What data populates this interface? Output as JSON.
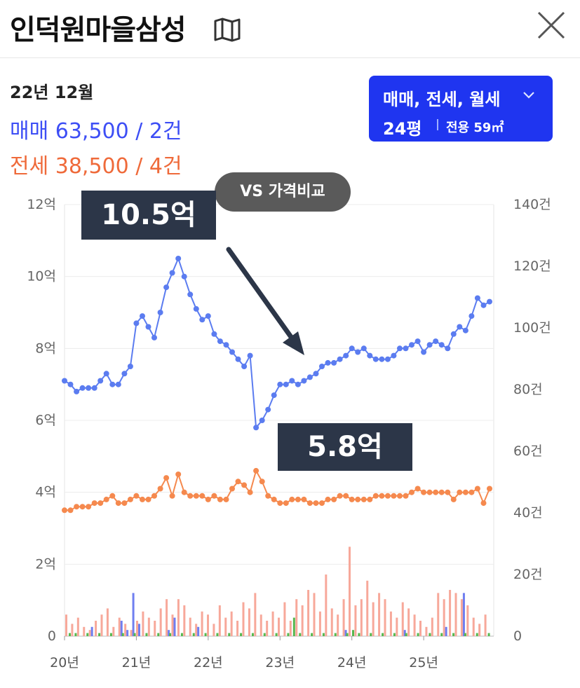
{
  "header": {
    "title": "인덕원마을삼성",
    "map_icon": "map-icon",
    "close_icon": "close-icon"
  },
  "info": {
    "date": "22년 12월",
    "sale": "매매 63,500 / 2건",
    "jeonse": "전세 38,500 / 4건"
  },
  "filter": {
    "types": "매매, 전세, 월세",
    "pyeong": "24평",
    "area": "전용 59㎡"
  },
  "vs_button": "VS 가격비교",
  "callouts": {
    "high": "10.5억",
    "low": "5.8억"
  },
  "colors": {
    "sale": "#5b7cf0",
    "jeonse": "#f5894e",
    "vol_sale": "#6f7ef0",
    "vol_jeonse": "#f7a89a",
    "vol_monthly": "#56b84f",
    "filter_bg": "#1f35f0",
    "callout_bg": "#2c3648"
  },
  "chart_data": {
    "type": "line",
    "x_labels": [
      "20년",
      "21년",
      "22년",
      "23년",
      "24년",
      "25년"
    ],
    "y_left": {
      "ticks": [
        "0",
        "2억",
        "4억",
        "6억",
        "8억",
        "10억",
        "12억"
      ],
      "range": [
        0,
        12
      ]
    },
    "y_right": {
      "ticks": [
        "0",
        "20건",
        "40건",
        "60건",
        "80건",
        "100건",
        "120건",
        "140건"
      ],
      "range": [
        0,
        140
      ]
    },
    "series": [
      {
        "key": "sale",
        "unit": "억",
        "values": [
          7.1,
          7.0,
          6.8,
          6.9,
          6.9,
          6.9,
          7.1,
          7.3,
          7.0,
          7.0,
          7.3,
          7.5,
          8.7,
          8.9,
          8.6,
          8.3,
          9.0,
          9.7,
          10.1,
          10.5,
          10.0,
          9.5,
          9.1,
          8.8,
          8.9,
          8.4,
          8.2,
          8.1,
          7.9,
          7.7,
          7.5,
          7.8,
          5.8,
          6.0,
          6.3,
          6.7,
          7.0,
          7.0,
          7.1,
          7.0,
          7.1,
          7.2,
          7.3,
          7.5,
          7.6,
          7.6,
          7.7,
          7.8,
          8.0,
          7.9,
          8.0,
          7.8,
          7.7,
          7.7,
          7.7,
          7.8,
          8.0,
          8.0,
          8.1,
          8.2,
          7.9,
          8.1,
          8.2,
          8.1,
          8.0,
          8.4,
          8.6,
          8.5,
          8.9,
          9.4,
          9.2,
          9.3
        ]
      },
      {
        "key": "jeonse",
        "unit": "억",
        "values": [
          3.5,
          3.5,
          3.6,
          3.6,
          3.6,
          3.7,
          3.7,
          3.8,
          3.9,
          3.7,
          3.7,
          3.8,
          3.9,
          3.8,
          3.8,
          3.9,
          4.1,
          4.4,
          3.9,
          4.5,
          4.0,
          3.9,
          3.9,
          3.9,
          3.8,
          3.9,
          3.8,
          3.8,
          4.1,
          4.3,
          4.2,
          4.0,
          4.6,
          4.3,
          3.9,
          3.8,
          3.7,
          3.7,
          3.8,
          3.8,
          3.8,
          3.7,
          3.7,
          3.7,
          3.8,
          3.8,
          3.9,
          3.9,
          3.8,
          3.8,
          3.8,
          3.8,
          3.9,
          3.9,
          3.9,
          3.9,
          3.9,
          3.9,
          4.0,
          4.1,
          4.0,
          4.0,
          4.0,
          4.0,
          4.0,
          3.8,
          4.0,
          4.0,
          4.0,
          4.1,
          3.7,
          4.1
        ]
      }
    ],
    "volume_bars": [
      {
        "s": 0,
        "j": 7,
        "m": 1
      },
      {
        "s": 0,
        "j": 4,
        "m": 1
      },
      {
        "s": 0,
        "j": 6,
        "m": 0
      },
      {
        "s": 0,
        "j": 3,
        "m": 1
      },
      {
        "s": 3,
        "j": 2,
        "m": 0
      },
      {
        "s": 0,
        "j": 5,
        "m": 1
      },
      {
        "s": 0,
        "j": 7,
        "m": 0
      },
      {
        "s": 0,
        "j": 9,
        "m": 1
      },
      {
        "s": 0,
        "j": 3,
        "m": 0
      },
      {
        "s": 5,
        "j": 6,
        "m": 1
      },
      {
        "s": 2,
        "j": 4,
        "m": 0
      },
      {
        "s": 14,
        "j": 2,
        "m": 1
      },
      {
        "s": 4,
        "j": 5,
        "m": 0
      },
      {
        "s": 0,
        "j": 8,
        "m": 1
      },
      {
        "s": 0,
        "j": 6,
        "m": 0
      },
      {
        "s": 0,
        "j": 5,
        "m": 1
      },
      {
        "s": 0,
        "j": 9,
        "m": 0
      },
      {
        "s": 2,
        "j": 12,
        "m": 1
      },
      {
        "s": 6,
        "j": 7,
        "m": 0
      },
      {
        "s": 0,
        "j": 12,
        "m": 1
      },
      {
        "s": 0,
        "j": 10,
        "m": 0
      },
      {
        "s": 0,
        "j": 6,
        "m": 1
      },
      {
        "s": 3,
        "j": 4,
        "m": 0
      },
      {
        "s": 0,
        "j": 8,
        "m": 1
      },
      {
        "s": 0,
        "j": 7,
        "m": 0
      },
      {
        "s": 0,
        "j": 4,
        "m": 1
      },
      {
        "s": 0,
        "j": 10,
        "m": 0
      },
      {
        "s": 0,
        "j": 6,
        "m": 1
      },
      {
        "s": 0,
        "j": 8,
        "m": 0
      },
      {
        "s": 0,
        "j": 5,
        "m": 1
      },
      {
        "s": 0,
        "j": 11,
        "m": 0
      },
      {
        "s": 0,
        "j": 9,
        "m": 1
      },
      {
        "s": 0,
        "j": 14,
        "m": 0
      },
      {
        "s": 0,
        "j": 7,
        "m": 1
      },
      {
        "s": 0,
        "j": 5,
        "m": 0
      },
      {
        "s": 0,
        "j": 8,
        "m": 1
      },
      {
        "s": 0,
        "j": 6,
        "m": 0
      },
      {
        "s": 0,
        "j": 11,
        "m": 1
      },
      {
        "s": 0,
        "j": 5,
        "m": 6
      },
      {
        "s": 0,
        "j": 12,
        "m": 1
      },
      {
        "s": 0,
        "j": 10,
        "m": 0
      },
      {
        "s": 0,
        "j": 15,
        "m": 1
      },
      {
        "s": 0,
        "j": 14,
        "m": 0
      },
      {
        "s": 0,
        "j": 8,
        "m": 1
      },
      {
        "s": 0,
        "j": 20,
        "m": 0
      },
      {
        "s": 0,
        "j": 9,
        "m": 1
      },
      {
        "s": 0,
        "j": 7,
        "m": 0
      },
      {
        "s": 2,
        "j": 12,
        "m": 1
      },
      {
        "s": 0,
        "j": 29,
        "m": 2
      },
      {
        "s": 0,
        "j": 10,
        "m": 1
      },
      {
        "s": 0,
        "j": 12,
        "m": 0
      },
      {
        "s": 0,
        "j": 18,
        "m": 1
      },
      {
        "s": 0,
        "j": 11,
        "m": 0
      },
      {
        "s": 0,
        "j": 14,
        "m": 1
      },
      {
        "s": 0,
        "j": 12,
        "m": 0
      },
      {
        "s": 0,
        "j": 8,
        "m": 1
      },
      {
        "s": 0,
        "j": 6,
        "m": 0
      },
      {
        "s": 2,
        "j": 11,
        "m": 1
      },
      {
        "s": 0,
        "j": 9,
        "m": 0
      },
      {
        "s": 0,
        "j": 7,
        "m": 1
      },
      {
        "s": 0,
        "j": 5,
        "m": 0
      },
      {
        "s": 0,
        "j": 3,
        "m": 1
      },
      {
        "s": 0,
        "j": 6,
        "m": 0
      },
      {
        "s": 0,
        "j": 14,
        "m": 1
      },
      {
        "s": 3,
        "j": 12,
        "m": 0
      },
      {
        "s": 0,
        "j": 15,
        "m": 1
      },
      {
        "s": 0,
        "j": 14,
        "m": 0
      },
      {
        "s": 14,
        "j": 12,
        "m": 1
      },
      {
        "s": 0,
        "j": 10,
        "m": 0
      },
      {
        "s": 0,
        "j": 6,
        "m": 1
      },
      {
        "s": 0,
        "j": 4,
        "m": 0
      },
      {
        "s": 0,
        "j": 7,
        "m": 1
      }
    ]
  }
}
